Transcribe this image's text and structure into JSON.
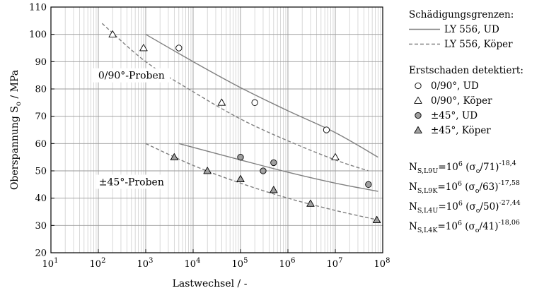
{
  "chart_data": {
    "type": "scatter",
    "x_scale": "log",
    "xlim": [
      10,
      100000000
    ],
    "ylim": [
      20,
      110
    ],
    "xlabel": "Lastwechsel  /  -",
    "ylabel_main": "Oberspannung S",
    "ylabel_sub": "o",
    "ylabel_tail": "  /  MPa",
    "x_ticks": [
      {
        "value": 10,
        "base": "10",
        "exp": "1"
      },
      {
        "value": 100,
        "base": "10",
        "exp": "2"
      },
      {
        "value": 1000,
        "base": "10",
        "exp": "3"
      },
      {
        "value": 10000,
        "base": "10",
        "exp": "4"
      },
      {
        "value": 100000,
        "base": "10",
        "exp": "5"
      },
      {
        "value": 1000000,
        "base": "10",
        "exp": "6"
      },
      {
        "value": 10000000,
        "base": "10",
        "exp": "7"
      },
      {
        "value": 100000000,
        "base": "10",
        "exp": "8"
      }
    ],
    "y_ticks": [
      20,
      30,
      40,
      50,
      60,
      70,
      80,
      90,
      100,
      110
    ],
    "grid": true,
    "legend_position": "right",
    "curves": [
      {
        "name": "LY 556, UD",
        "style": "solid",
        "color": "#808080",
        "x": [
          1000,
          10000,
          100000,
          1000000,
          10000000,
          80000000
        ],
        "y": [
          100,
          90,
          80.5,
          72,
          64,
          55
        ]
      },
      {
        "name": "LY 556, UD",
        "style": "solid",
        "color": "#808080",
        "x": [
          5000,
          100000,
          1000000,
          10000000,
          80000000
        ],
        "y": [
          60,
          54,
          49.5,
          45.5,
          42.5
        ]
      },
      {
        "name": "LY 556, Köper",
        "style": "dashed",
        "color": "#808080",
        "x": [
          120,
          1000,
          10000,
          100000,
          1000000,
          10000000,
          50000000
        ],
        "y": [
          104,
          90,
          79,
          69,
          61,
          54,
          50
        ]
      },
      {
        "name": "LY 556, Köper",
        "style": "dashed",
        "color": "#808080",
        "x": [
          1000,
          10000,
          100000,
          1000000,
          10000000,
          80000000
        ],
        "y": [
          60,
          52,
          45.5,
          40,
          35.5,
          32
        ]
      }
    ],
    "series": [
      {
        "name": "0/90°, UD",
        "marker": "circle",
        "fill": "#ffffff",
        "x": [
          5000,
          200000,
          6500000
        ],
        "y": [
          95,
          75,
          65
        ]
      },
      {
        "name": "0/90°, Köper",
        "marker": "triangle",
        "fill": "#ffffff",
        "x": [
          200,
          900,
          40000,
          10000000
        ],
        "y": [
          100,
          95,
          75,
          55
        ]
      },
      {
        "name": "±45°, UD",
        "marker": "circle",
        "fill": "#a0a0a0",
        "x": [
          100000,
          300000,
          500000,
          50000000
        ],
        "y": [
          55,
          50,
          53,
          45
        ]
      },
      {
        "name": "±45°, Köper",
        "marker": "triangle",
        "fill": "#a0a0a0",
        "x": [
          4000,
          20000,
          100000,
          500000,
          3000000,
          75000000
        ],
        "y": [
          55,
          50,
          47,
          43,
          38,
          32
        ]
      }
    ],
    "annotations": [
      {
        "text": "0/90°-Proben",
        "x": 500,
        "y": 85
      },
      {
        "text": "±45°-Proben",
        "x": 500,
        "y": 46
      }
    ],
    "legend": {
      "title_lines": "Schädigungsgrenzen:",
      "title_detect": "Erstschaden detektiert:",
      "lines": [
        {
          "label": "LY 556, UD",
          "style": "solid"
        },
        {
          "label": "LY 556, Köper",
          "style": "dashed"
        }
      ],
      "markers": [
        {
          "label": "0/90°, UD",
          "marker": "circle",
          "fill": "#ffffff"
        },
        {
          "label": "0/90°, Köper",
          "marker": "triangle",
          "fill": "#ffffff"
        },
        {
          "label": "±45°, UD",
          "marker": "circle",
          "fill": "#a0a0a0"
        },
        {
          "label": "±45°, Köper",
          "marker": "triangle",
          "fill": "#a0a0a0"
        }
      ]
    },
    "equations": [
      {
        "n": "N",
        "nsub": "S,L9U",
        "eq": "=10",
        "pow": "6",
        "open": " (σ",
        "sig_sub": "o",
        "close": "/71)",
        "exp": "-18,4"
      },
      {
        "n": "N",
        "nsub": "S,L9K",
        "eq": "=10",
        "pow": "6",
        "open": " (σ",
        "sig_sub": "o",
        "close": "/63)",
        "exp": "-17,58"
      },
      {
        "n": "N",
        "nsub": "S,L4U",
        "eq": "=10",
        "pow": "6",
        "open": " (σ",
        "sig_sub": "o",
        "close": "/50)",
        "exp": "-27,44"
      },
      {
        "n": "N",
        "nsub": "S,L4K",
        "eq": "=10",
        "pow": "6",
        "open": " (σ",
        "sig_sub": "o",
        "close": "/41)",
        "exp": "-18,06"
      }
    ]
  }
}
